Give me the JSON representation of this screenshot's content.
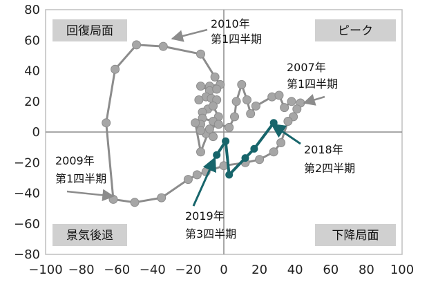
{
  "chart_data": {
    "type": "line",
    "xlim": [
      -100,
      100
    ],
    "ylim": [
      -80,
      80
    ],
    "x_ticks": [
      -100,
      -80,
      -60,
      -40,
      -20,
      0,
      20,
      40,
      60,
      80,
      100
    ],
    "y_ticks": [
      80,
      60,
      40,
      20,
      0,
      -20,
      -40,
      -60,
      -80
    ],
    "x_tick_labels": [
      "−100",
      "−80",
      "−60",
      "−40",
      "−20",
      "0",
      "20",
      "40",
      "60",
      "80",
      "100"
    ],
    "y_tick_labels": [
      "80",
      "60",
      "40",
      "20",
      "0",
      "−20",
      "−40",
      "−60",
      "−80"
    ],
    "grid": false,
    "quadrants": {
      "top_left": "回復局面",
      "top_right": "ピーク",
      "bottom_left": "景気後退",
      "bottom_right": "下降局面"
    },
    "series": [
      {
        "color": "#8c8c8c",
        "points": [
          [
            43,
            19
          ],
          [
            41,
            15
          ],
          [
            39,
            10
          ],
          [
            36,
            7
          ],
          [
            32,
            -7
          ],
          [
            28,
            -13
          ],
          [
            20,
            -18
          ],
          [
            12,
            -20
          ],
          [
            0,
            -22
          ],
          [
            -10,
            -26
          ],
          [
            -15,
            -28
          ],
          [
            -20,
            -31
          ],
          [
            -35,
            -43
          ],
          [
            -50,
            -46
          ],
          [
            -62,
            -44
          ],
          [
            -66,
            6
          ],
          [
            -61,
            41
          ],
          [
            -49,
            57
          ],
          [
            -34,
            56
          ],
          [
            -13,
            51
          ],
          [
            -5,
            36
          ],
          [
            -2,
            31
          ],
          [
            -8,
            30
          ],
          [
            -13,
            30
          ],
          [
            -8,
            27
          ],
          [
            -4,
            28
          ],
          [
            -10,
            23
          ],
          [
            -14,
            21
          ],
          [
            -7,
            22
          ],
          [
            -4,
            21
          ],
          [
            -9,
            15
          ],
          [
            -12,
            13
          ],
          [
            -6,
            17
          ],
          [
            -3,
            10
          ],
          [
            -6,
            7
          ],
          [
            -12,
            9
          ],
          [
            -13,
            5
          ],
          [
            -10,
            -1
          ],
          [
            -6,
            -3
          ],
          [
            -13,
            1
          ],
          [
            -16,
            6
          ],
          [
            -13,
            -13
          ],
          [
            -8,
            2
          ],
          [
            -3,
            5
          ],
          [
            3,
            3
          ],
          [
            6,
            10
          ],
          [
            7,
            20
          ],
          [
            10,
            31
          ],
          [
            13,
            21
          ],
          [
            15,
            12
          ],
          [
            18,
            17
          ],
          [
            27,
            23
          ],
          [
            31,
            24
          ],
          [
            34,
            16
          ],
          [
            38,
            20
          ]
        ]
      },
      {
        "color": "#17656b",
        "points": [
          [
            -4,
            -15
          ],
          [
            1,
            -6
          ],
          [
            3,
            -28
          ],
          [
            12,
            -17
          ],
          [
            17,
            -11
          ],
          [
            28,
            6
          ]
        ]
      }
    ],
    "annotations": [
      {
        "lines": [
          "2010年",
          "第1四半期"
        ],
        "arrow_to": [
          -29,
          61
        ],
        "style": "gray"
      },
      {
        "lines": [
          "2007年",
          "第1四半期"
        ],
        "arrow_to": [
          45,
          19
        ],
        "style": "gray"
      },
      {
        "lines": [
          "2009年",
          "第1四半期"
        ],
        "arrow_to": [
          -62,
          -42
        ],
        "style": "gray"
      },
      {
        "lines": [
          "2018年",
          "第2四半期"
        ],
        "arrow_to": [
          27,
          5
        ],
        "style": "teal"
      },
      {
        "lines": [
          "2019年",
          "第3四半期"
        ],
        "arrow_to": [
          -5,
          -17
        ],
        "style": "teal"
      }
    ]
  }
}
